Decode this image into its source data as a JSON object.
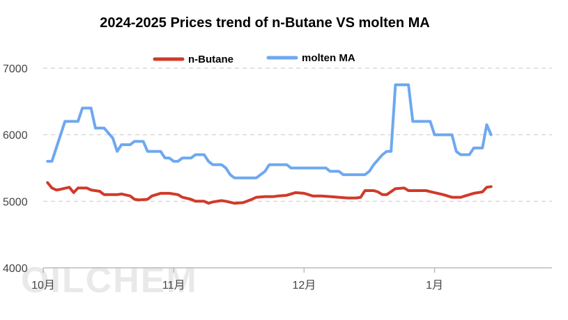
{
  "watermark": "OILCHEM",
  "chart_data": {
    "type": "line",
    "title": "2024-2025 Prices trend of n-Butane VS molten MA",
    "xlabel": "",
    "ylabel": "",
    "ylim": [
      4000,
      7000
    ],
    "yticks": [
      4000,
      5000,
      6000,
      7000
    ],
    "xlim": [
      "2024-09-29",
      "2025-01-24"
    ],
    "xticks": [
      {
        "date": "2024-09-29",
        "label": "10月"
      },
      {
        "date": "2024-10-29",
        "label": "11月"
      },
      {
        "date": "2024-11-28",
        "label": "12月"
      },
      {
        "date": "2024-12-28",
        "label": "1月"
      }
    ],
    "grid": "horizontal dashed",
    "legend_position": "top-center",
    "series": [
      {
        "name": "n-Butane",
        "color": "#d03a2a",
        "points": [
          [
            "2024-09-30",
            5280
          ],
          [
            "2024-10-01",
            5200
          ],
          [
            "2024-10-02",
            5170
          ],
          [
            "2024-10-03",
            5180
          ],
          [
            "2024-10-05",
            5210
          ],
          [
            "2024-10-06",
            5130
          ],
          [
            "2024-10-07",
            5200
          ],
          [
            "2024-10-09",
            5200
          ],
          [
            "2024-10-10",
            5170
          ],
          [
            "2024-10-12",
            5150
          ],
          [
            "2024-10-13",
            5100
          ],
          [
            "2024-10-14",
            5100
          ],
          [
            "2024-10-16",
            5100
          ],
          [
            "2024-10-17",
            5110
          ],
          [
            "2024-10-19",
            5080
          ],
          [
            "2024-10-20",
            5030
          ],
          [
            "2024-10-21",
            5020
          ],
          [
            "2024-10-23",
            5030
          ],
          [
            "2024-10-24",
            5080
          ],
          [
            "2024-10-26",
            5120
          ],
          [
            "2024-10-28",
            5120
          ],
          [
            "2024-10-30",
            5100
          ],
          [
            "2024-10-31",
            5060
          ],
          [
            "2024-11-02",
            5030
          ],
          [
            "2024-11-03",
            5000
          ],
          [
            "2024-11-05",
            5000
          ],
          [
            "2024-11-06",
            4970
          ],
          [
            "2024-11-07",
            4990
          ],
          [
            "2024-11-09",
            5010
          ],
          [
            "2024-11-10",
            5000
          ],
          [
            "2024-11-12",
            4970
          ],
          [
            "2024-11-14",
            4980
          ],
          [
            "2024-11-16",
            5030
          ],
          [
            "2024-11-17",
            5060
          ],
          [
            "2024-11-19",
            5070
          ],
          [
            "2024-11-21",
            5070
          ],
          [
            "2024-11-22",
            5080
          ],
          [
            "2024-11-24",
            5090
          ],
          [
            "2024-11-26",
            5130
          ],
          [
            "2024-11-28",
            5120
          ],
          [
            "2024-11-30",
            5080
          ],
          [
            "2024-12-02",
            5080
          ],
          [
            "2024-12-04",
            5070
          ],
          [
            "2024-12-06",
            5060
          ],
          [
            "2024-12-08",
            5050
          ],
          [
            "2024-12-10",
            5050
          ],
          [
            "2024-12-11",
            5060
          ],
          [
            "2024-12-12",
            5160
          ],
          [
            "2024-12-14",
            5160
          ],
          [
            "2024-12-15",
            5140
          ],
          [
            "2024-12-16",
            5100
          ],
          [
            "2024-12-17",
            5100
          ],
          [
            "2024-12-19",
            5190
          ],
          [
            "2024-12-21",
            5200
          ],
          [
            "2024-12-22",
            5160
          ],
          [
            "2024-12-24",
            5160
          ],
          [
            "2024-12-26",
            5160
          ],
          [
            "2024-12-28",
            5130
          ],
          [
            "2024-12-30",
            5100
          ],
          [
            "2025-01-01",
            5060
          ],
          [
            "2025-01-03",
            5060
          ],
          [
            "2025-01-04",
            5080
          ],
          [
            "2025-01-06",
            5120
          ],
          [
            "2025-01-08",
            5140
          ],
          [
            "2025-01-09",
            5210
          ],
          [
            "2025-01-10",
            5220
          ]
        ]
      },
      {
        "name": "molten MA",
        "color": "#6ea8f0",
        "points": [
          [
            "2024-09-30",
            5600
          ],
          [
            "2024-10-01",
            5600
          ],
          [
            "2024-10-04",
            6200
          ],
          [
            "2024-10-07",
            6200
          ],
          [
            "2024-10-08",
            6400
          ],
          [
            "2024-10-10",
            6400
          ],
          [
            "2024-10-11",
            6100
          ],
          [
            "2024-10-13",
            6100
          ],
          [
            "2024-10-15",
            5950
          ],
          [
            "2024-10-16",
            5750
          ],
          [
            "2024-10-17",
            5850
          ],
          [
            "2024-10-19",
            5850
          ],
          [
            "2024-10-20",
            5900
          ],
          [
            "2024-10-22",
            5900
          ],
          [
            "2024-10-23",
            5750
          ],
          [
            "2024-10-26",
            5750
          ],
          [
            "2024-10-27",
            5650
          ],
          [
            "2024-10-28",
            5650
          ],
          [
            "2024-10-29",
            5600
          ],
          [
            "2024-10-30",
            5600
          ],
          [
            "2024-10-31",
            5650
          ],
          [
            "2024-11-02",
            5650
          ],
          [
            "2024-11-03",
            5700
          ],
          [
            "2024-11-05",
            5700
          ],
          [
            "2024-11-06",
            5600
          ],
          [
            "2024-11-07",
            5550
          ],
          [
            "2024-11-09",
            5550
          ],
          [
            "2024-11-10",
            5500
          ],
          [
            "2024-11-11",
            5400
          ],
          [
            "2024-11-12",
            5350
          ],
          [
            "2024-11-17",
            5350
          ],
          [
            "2024-11-19",
            5450
          ],
          [
            "2024-11-20",
            5550
          ],
          [
            "2024-11-24",
            5550
          ],
          [
            "2024-11-25",
            5500
          ],
          [
            "2024-12-03",
            5500
          ],
          [
            "2024-12-04",
            5450
          ],
          [
            "2024-12-06",
            5450
          ],
          [
            "2024-12-07",
            5400
          ],
          [
            "2024-12-12",
            5400
          ],
          [
            "2024-12-13",
            5450
          ],
          [
            "2024-12-14",
            5550
          ],
          [
            "2024-12-16",
            5700
          ],
          [
            "2024-12-17",
            5750
          ],
          [
            "2024-12-18",
            5750
          ],
          [
            "2024-12-19",
            6750
          ],
          [
            "2024-12-22",
            6750
          ],
          [
            "2024-12-23",
            6200
          ],
          [
            "2024-12-27",
            6200
          ],
          [
            "2024-12-28",
            6000
          ],
          [
            "2025-01-01",
            6000
          ],
          [
            "2025-01-02",
            5750
          ],
          [
            "2025-01-03",
            5700
          ],
          [
            "2025-01-05",
            5700
          ],
          [
            "2025-01-06",
            5800
          ],
          [
            "2025-01-08",
            5800
          ],
          [
            "2025-01-09",
            6150
          ],
          [
            "2025-01-10",
            6000
          ]
        ]
      }
    ]
  }
}
